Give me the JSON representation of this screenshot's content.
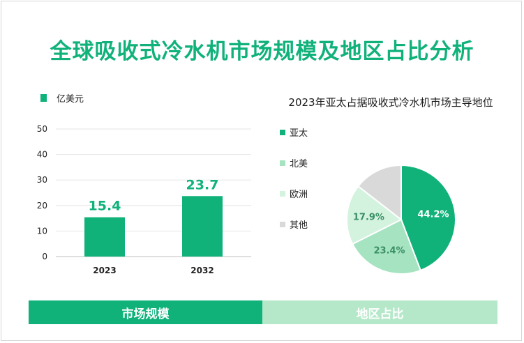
{
  "title": "全球吸收式冷水机市场规模及地区占比分析",
  "chart_data": [
    {
      "type": "bar",
      "legend": "亿美元",
      "categories": [
        "2023",
        "2032"
      ],
      "values": [
        15.4,
        23.7
      ],
      "value_labels": [
        "15.4",
        "23.7"
      ],
      "ylim": [
        0,
        50
      ],
      "yticks": [
        0,
        10,
        20,
        30,
        40,
        50
      ],
      "grid": true,
      "color": "#10b27a"
    },
    {
      "type": "pie",
      "title": "2023年亚太占据吸收式冷水机市场主导地位",
      "legend_position": "left",
      "slices": [
        {
          "label": "亚太",
          "value": 44.2,
          "text": "44.2%",
          "color": "#10b27a"
        },
        {
          "label": "北美",
          "value": 23.4,
          "text": "23.4%",
          "color": "#a6e3c0"
        },
        {
          "label": "欧洲",
          "value": 17.9,
          "text": "17.9%",
          "color": "#d3f3df"
        },
        {
          "label": "其他",
          "value": 14.5,
          "text": "",
          "color": "#d9d9d9"
        }
      ]
    }
  ],
  "bands": {
    "left": "市场规模",
    "right": "地区占比"
  }
}
